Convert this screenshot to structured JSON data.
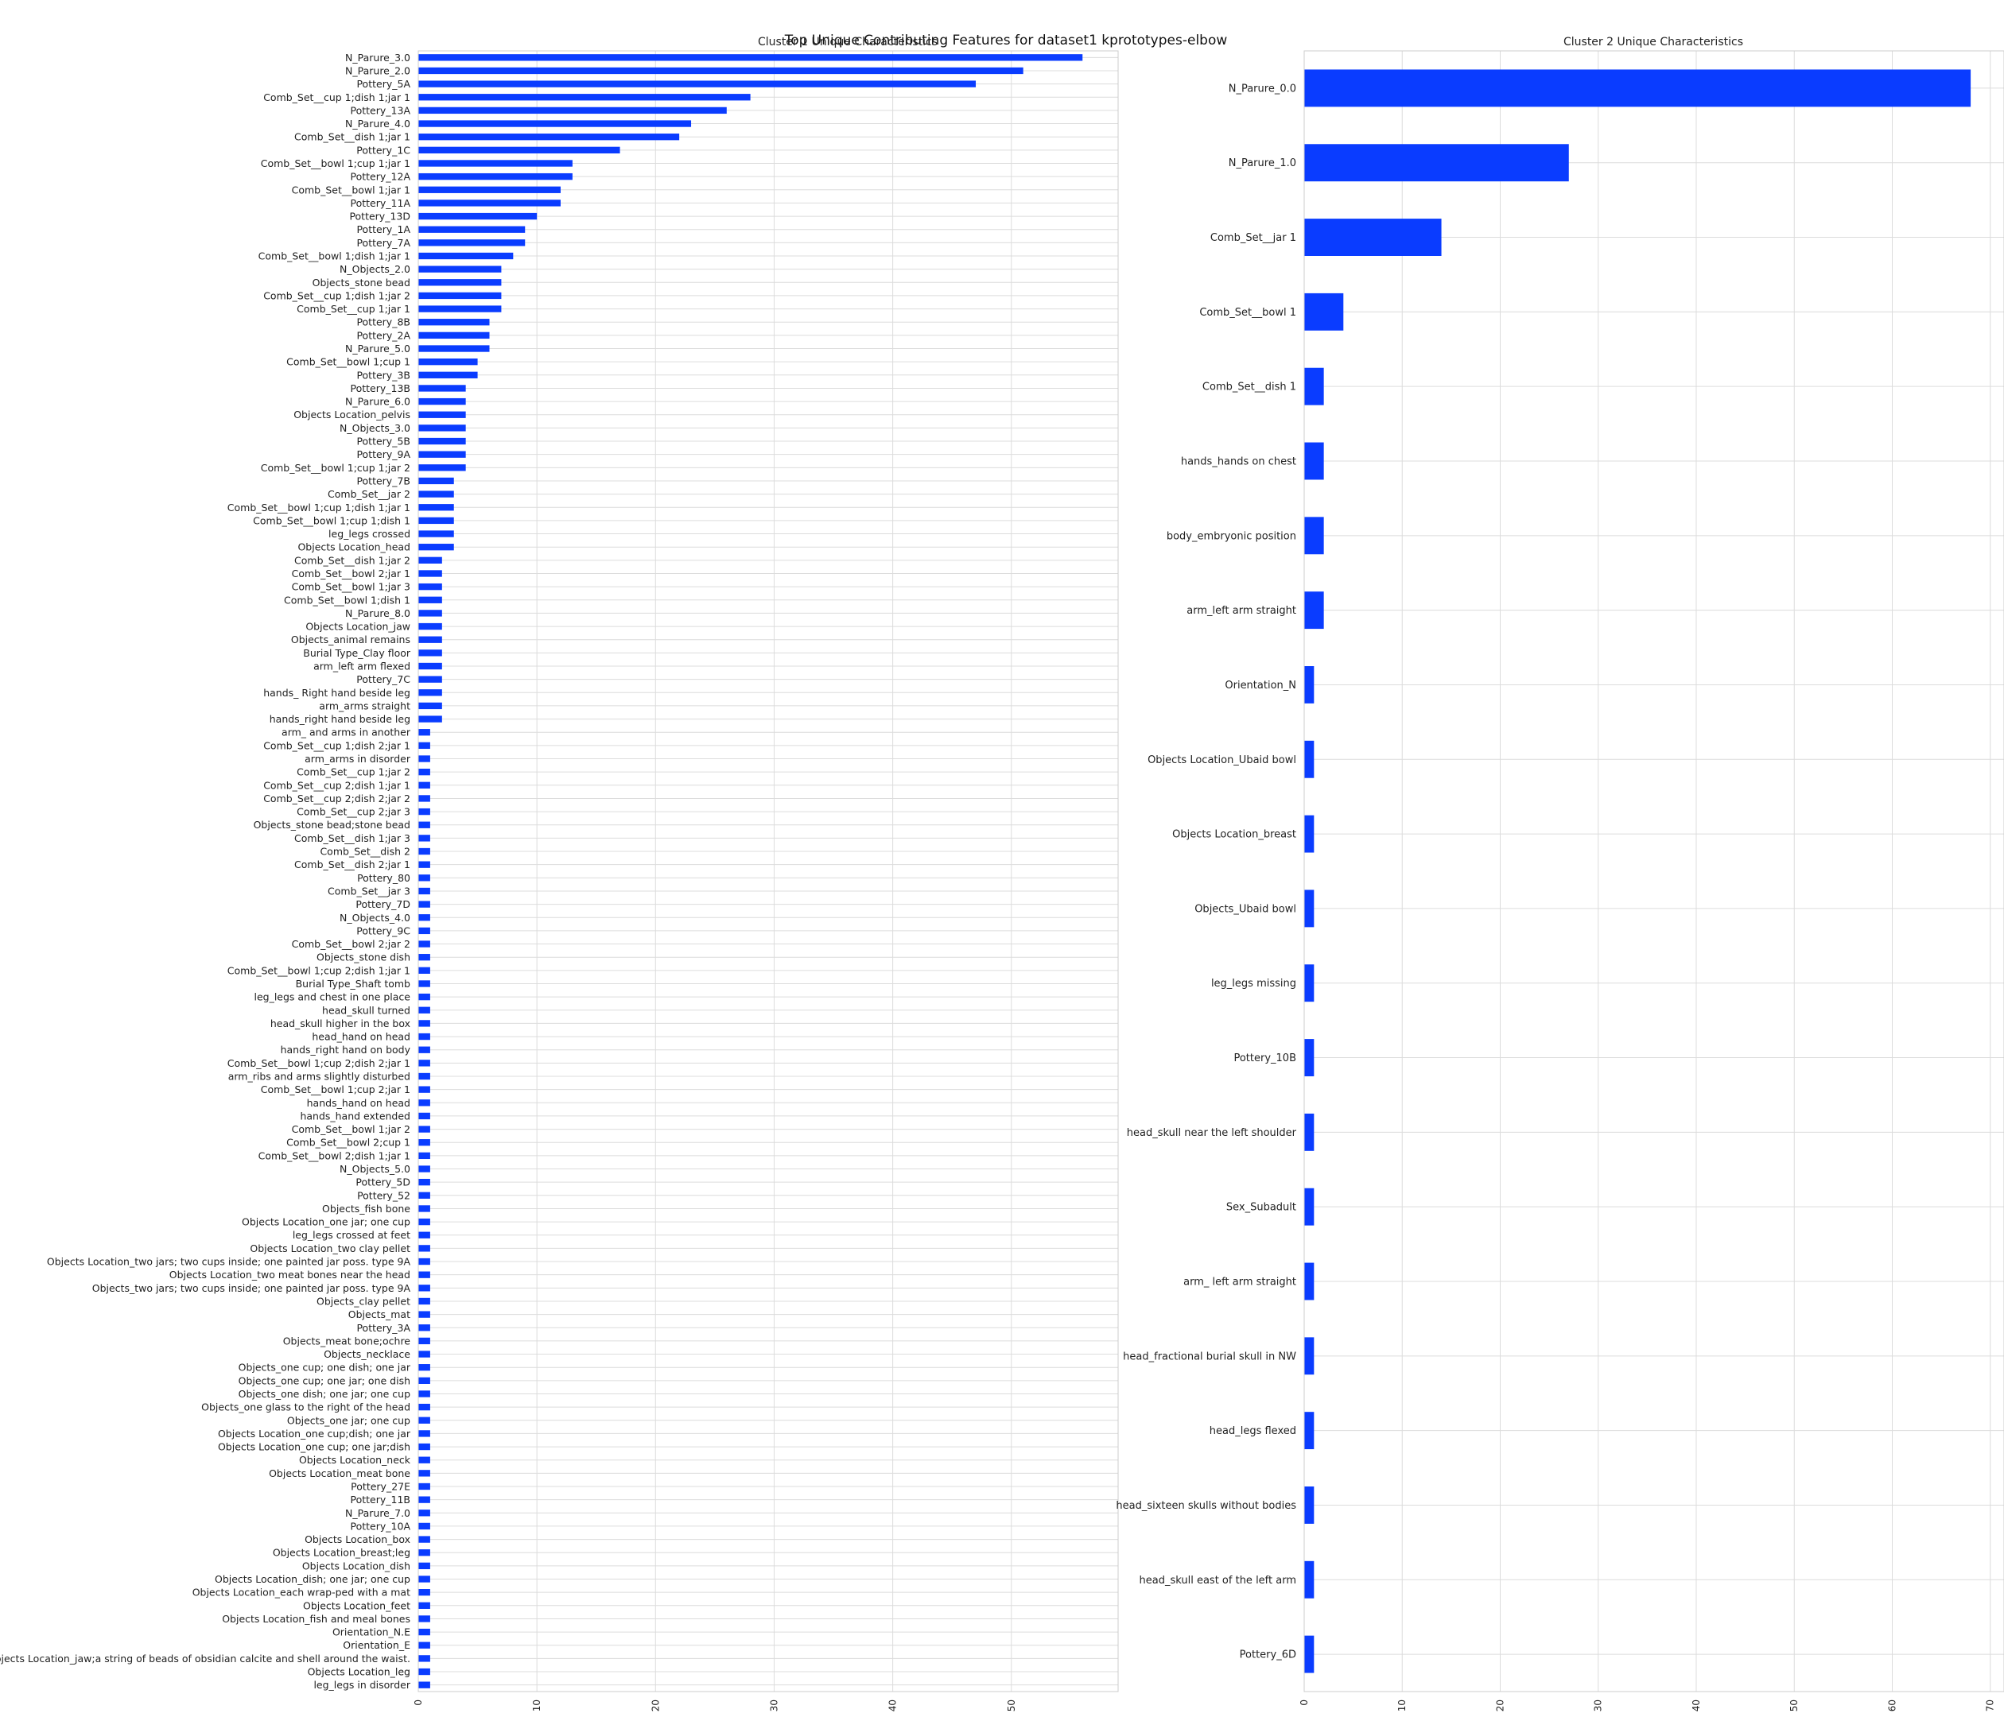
{
  "figure_title": "Top Unique Contributing Features for dataset1 kprototypes-elbow",
  "colors": {
    "bar": "#0a3cff",
    "grid": "#dcdcdc",
    "frame": "#cccccc"
  },
  "chart_data": [
    {
      "type": "bar",
      "orientation": "horizontal",
      "title": "Cluster 1 Unique Characteristics",
      "xlabel": "",
      "ylabel": "",
      "xlim": [
        0,
        59
      ],
      "xticks": [
        0,
        10,
        20,
        30,
        40,
        50
      ],
      "grid": true,
      "categories": [
        "N_Parure_3.0",
        "N_Parure_2.0",
        "Pottery_5A",
        "Comb_Set__cup 1;dish 1;jar 1",
        "Pottery_13A",
        "N_Parure_4.0",
        "Comb_Set__dish 1;jar 1",
        "Pottery_1C",
        "Comb_Set__bowl 1;cup 1;jar 1",
        "Pottery_12A",
        "Comb_Set__bowl 1;jar 1",
        "Pottery_11A",
        "Pottery_13D",
        "Pottery_1A",
        "Pottery_7A",
        "Comb_Set__bowl 1;dish 1;jar 1",
        "N_Objects_2.0",
        "Objects_stone bead",
        "Comb_Set__cup 1;dish 1;jar 2",
        "Comb_Set__cup 1;jar 1",
        "Pottery_8B",
        "Pottery_2A",
        "N_Parure_5.0",
        "Comb_Set__bowl 1;cup 1",
        "Pottery_3B",
        "Pottery_13B",
        "N_Parure_6.0",
        "Objects Location_pelvis",
        "N_Objects_3.0",
        "Pottery_5B",
        "Pottery_9A",
        "Comb_Set__bowl 1;cup 1;jar 2",
        "Pottery_7B",
        "Comb_Set__jar 2",
        "Comb_Set__bowl 1;cup 1;dish 1;jar 1",
        "Comb_Set__bowl 1;cup 1;dish 1",
        "leg_legs crossed",
        "Objects Location_head",
        "Comb_Set__dish 1;jar 2",
        "Comb_Set__bowl 2;jar 1",
        "Comb_Set__bowl 1;jar 3",
        "Comb_Set__bowl 1;dish 1",
        "N_Parure_8.0",
        "Objects Location_jaw",
        "Objects_animal remains",
        "Burial Type_Clay floor",
        "arm_left arm flexed",
        "Pottery_7C",
        "hands_ Right hand beside leg",
        "arm_arms straight",
        "hands_right hand beside leg",
        "arm_ and arms in another",
        "Comb_Set__cup 1;dish 2;jar 1",
        "arm_arms in disorder",
        "Comb_Set__cup 1;jar 2",
        "Comb_Set__cup 2;dish 1;jar 1",
        "Comb_Set__cup 2;dish 2;jar 2",
        "Comb_Set__cup 2;jar 3",
        "Objects_stone bead;stone bead",
        "Comb_Set__dish 1;jar 3",
        "Comb_Set__dish 2",
        "Comb_Set__dish 2;jar 1",
        "Pottery_80",
        "Comb_Set__jar 3",
        "Pottery_7D",
        "N_Objects_4.0",
        "Pottery_9C",
        "Comb_Set__bowl 2;jar 2",
        "Objects_stone dish",
        "Comb_Set__bowl 1;cup 2;dish 1;jar 1",
        "Burial Type_Shaft tomb",
        "leg_legs and chest in one place",
        "head_skull turned",
        "head_skull higher in the box",
        "head_hand on head",
        "hands_right hand on body",
        "Comb_Set__bowl 1;cup 2;dish 2;jar 1",
        "arm_ribs and arms slightly disturbed",
        "Comb_Set__bowl 1;cup 2;jar 1",
        "hands_hand on head",
        "hands_hand extended",
        "Comb_Set__bowl 1;jar 2",
        "Comb_Set__bowl 2;cup 1",
        "Comb_Set__bowl 2;dish 1;jar 1",
        "N_Objects_5.0",
        "Pottery_5D",
        "Pottery_52",
        "Objects_fish bone",
        "Objects Location_one jar; one cup",
        "leg_legs crossed at feet",
        "Objects Location_two clay pellet",
        "Objects Location_two jars; two cups inside; one painted jar poss. type 9A",
        "Objects Location_two meat bones near the head",
        "Objects_two jars; two cups inside; one painted jar poss. type 9A",
        "Objects_clay pellet",
        "Objects_mat",
        "Pottery_3A",
        "Objects_meat bone;ochre",
        "Objects_necklace",
        "Objects_one cup; one dish; one jar",
        "Objects_one cup; one jar; one dish",
        "Objects_one dish; one jar; one cup",
        "Objects_one glass to the right of the head",
        "Objects_one jar; one cup",
        "Objects Location_one cup;dish; one jar",
        "Objects Location_one cup; one jar;dish",
        "Objects Location_neck",
        "Objects Location_meat bone",
        "Pottery_27E",
        "Pottery_11B",
        "N_Parure_7.0",
        "Pottery_10A",
        "Objects Location_box",
        "Objects Location_breast;leg",
        "Objects Location_dish",
        "Objects Location_dish; one jar; one cup",
        "Objects Location_each wrap-ped with a mat",
        "Objects Location_feet",
        "Objects Location_fish and meal bones",
        "Orientation_N.E",
        "Orientation_E",
        "Objects Location_jaw;a string of beads of obsidian calcite and shell around the waist.",
        "Objects Location_leg",
        "leg_legs in disorder"
      ],
      "values": [
        56,
        51,
        47,
        28,
        26,
        23,
        22,
        17,
        13,
        13,
        12,
        12,
        10,
        9,
        9,
        8,
        7,
        7,
        7,
        7,
        6,
        6,
        6,
        5,
        5,
        4,
        4,
        4,
        4,
        4,
        4,
        4,
        3,
        3,
        3,
        3,
        3,
        3,
        2,
        2,
        2,
        2,
        2,
        2,
        2,
        2,
        2,
        2,
        2,
        2,
        2,
        1,
        1,
        1,
        1,
        1,
        1,
        1,
        1,
        1,
        1,
        1,
        1,
        1,
        1,
        1,
        1,
        1,
        1,
        1,
        1,
        1,
        1,
        1,
        1,
        1,
        1,
        1,
        1,
        1,
        1,
        1,
        1,
        1,
        1,
        1,
        1,
        1,
        1,
        1,
        1,
        1,
        1,
        1,
        1,
        1,
        1,
        1,
        1,
        1,
        1,
        1,
        1,
        1,
        1,
        1,
        1,
        1,
        1,
        1,
        1,
        1,
        1,
        1,
        1,
        1,
        1,
        1,
        1,
        1,
        1,
        1,
        1,
        1
      ]
    },
    {
      "type": "bar",
      "orientation": "horizontal",
      "title": "Cluster 2 Unique Characteristics",
      "xlabel": "",
      "ylabel": "",
      "xlim": [
        0,
        71.4
      ],
      "xticks": [
        0,
        10,
        20,
        30,
        40,
        50,
        60,
        70
      ],
      "grid": true,
      "categories": [
        "N_Parure_0.0",
        "N_Parure_1.0",
        "Comb_Set__jar 1",
        "Comb_Set__bowl 1",
        "Comb_Set__dish 1",
        "hands_hands on chest",
        "body_embryonic position",
        "arm_left arm straight",
        "Orientation_N",
        "Objects Location_Ubaid bowl",
        "Objects Location_breast",
        "Objects_Ubaid bowl",
        "leg_legs missing",
        "Pottery_10B",
        "head_skull near the left shoulder",
        "Sex_Subadult",
        "arm_ left arm straight",
        "head_fractional burial skull in NW",
        "head_legs flexed",
        "head_sixteen skulls without bodies",
        "head_skull east of the left arm",
        "Pottery_6D"
      ],
      "values": [
        68,
        27,
        14,
        4,
        2,
        2,
        2,
        2,
        1,
        1,
        1,
        1,
        1,
        1,
        1,
        1,
        1,
        1,
        1,
        1,
        1,
        1
      ]
    }
  ]
}
